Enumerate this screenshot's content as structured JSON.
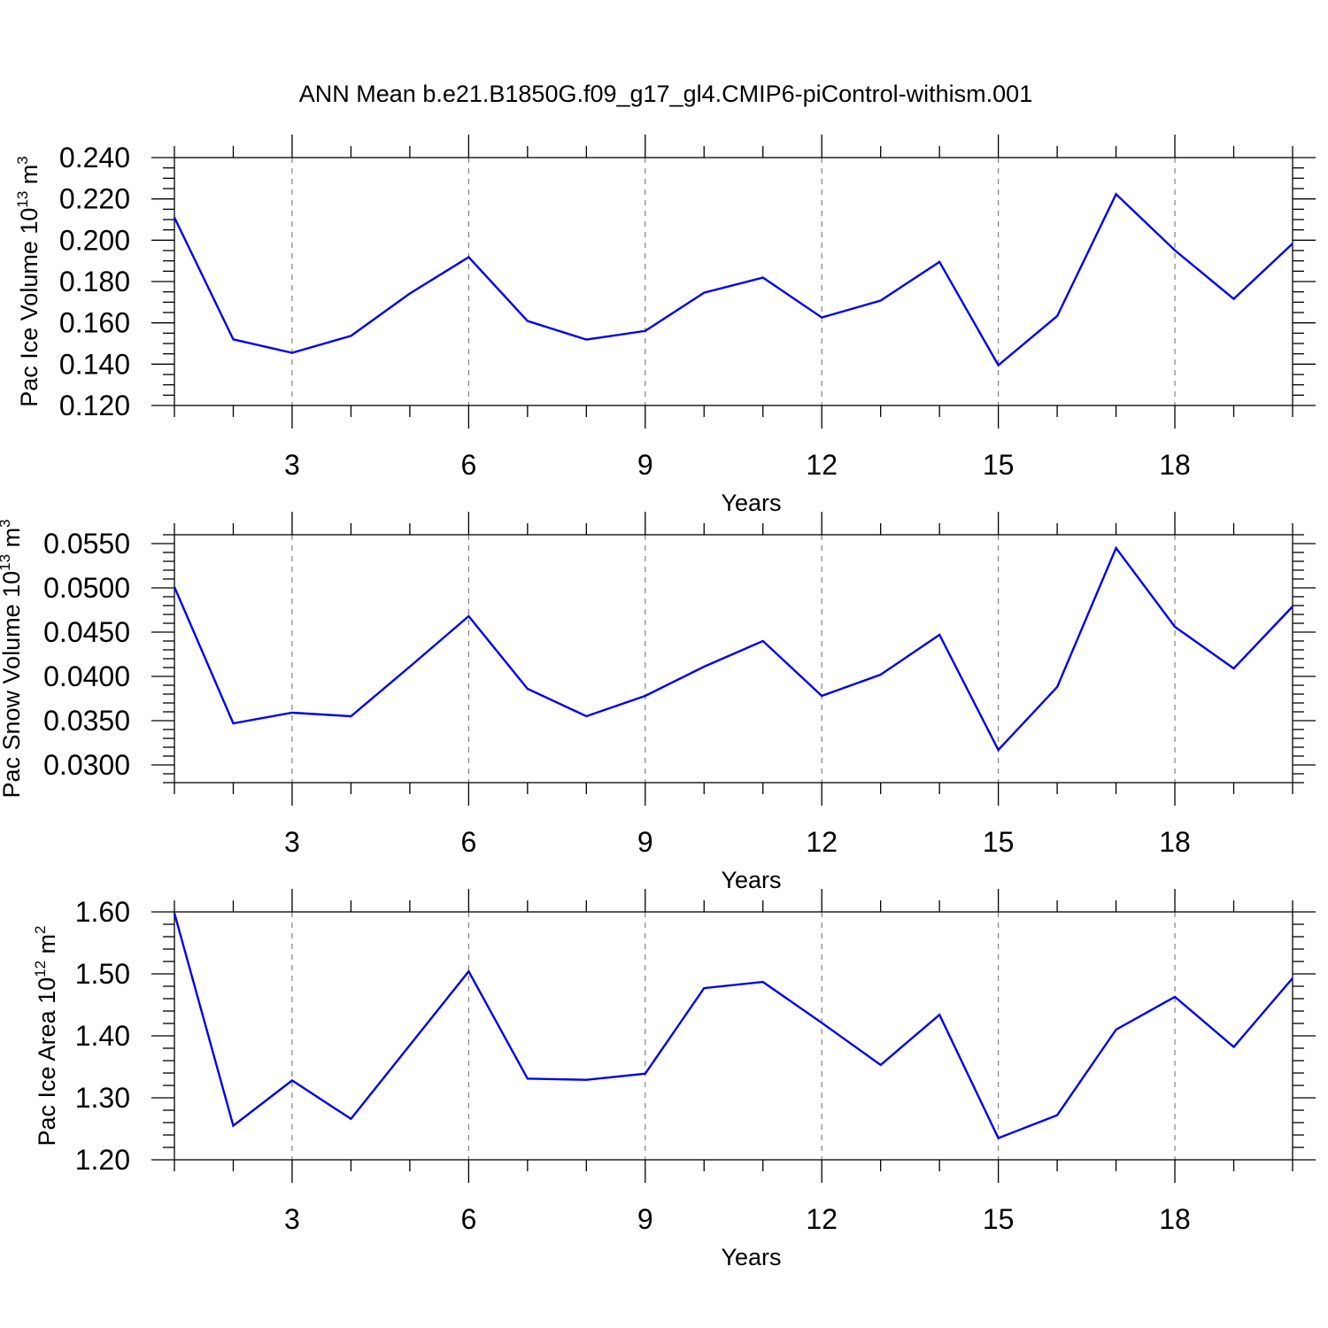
{
  "title": "ANN Mean b.e21.B1850G.f09_g17_gl4.CMIP6-piControl-withism.001",
  "colors": {
    "series": "#0000ee",
    "grid": "#777777",
    "frame": "#000000"
  },
  "chart_data": [
    {
      "type": "line",
      "ylabel": {
        "prefix": "Pac Ice Volume 10",
        "exp": "13",
        "unit": " m",
        "unit_exp": "3"
      },
      "xlabel": "Years",
      "xlim": [
        1,
        20
      ],
      "ylim": [
        0.12,
        0.24
      ],
      "x_ticks": [
        3,
        6,
        9,
        12,
        15,
        18
      ],
      "y_ticks": [
        "0.120",
        "0.140",
        "0.160",
        "0.180",
        "0.200",
        "0.220",
        "0.240"
      ],
      "y_tick_values": [
        0.12,
        0.14,
        0.16,
        0.18,
        0.2,
        0.22,
        0.24
      ],
      "y_minor_step": 0.005,
      "grid": "x dashed",
      "x": [
        1,
        2,
        3,
        4,
        5,
        6,
        7,
        8,
        9,
        10,
        11,
        12,
        13,
        14,
        15,
        16,
        17,
        18,
        19,
        20
      ],
      "series": [
        {
          "values": [
            0.211,
            0.152,
            0.1455,
            0.1537,
            0.1742,
            0.1918,
            0.1609,
            0.1519,
            0.1561,
            0.1746,
            0.1819,
            0.1626,
            0.1708,
            0.1895,
            0.1395,
            0.1633,
            0.2223,
            0.1951,
            0.1716,
            0.1984
          ]
        }
      ]
    },
    {
      "type": "line",
      "ylabel": {
        "prefix": "Pac Snow Volume 10",
        "exp": "13",
        "unit": " m",
        "unit_exp": "3"
      },
      "xlabel": "Years",
      "xlim": [
        1,
        20
      ],
      "ylim": [
        0.028,
        0.056
      ],
      "x_ticks": [
        3,
        6,
        9,
        12,
        15,
        18
      ],
      "y_ticks": [
        "0.0300",
        "0.0350",
        "0.0400",
        "0.0450",
        "0.0500",
        "0.0550"
      ],
      "y_tick_values": [
        0.03,
        0.035,
        0.04,
        0.045,
        0.05,
        0.055
      ],
      "y_minor_step": 0.001,
      "grid": "x dashed",
      "x": [
        1,
        2,
        3,
        4,
        5,
        6,
        7,
        8,
        9,
        10,
        11,
        12,
        13,
        14,
        15,
        16,
        17,
        18,
        19,
        20
      ],
      "series": [
        {
          "values": [
            0.0501,
            0.0347,
            0.0359,
            0.0355,
            0.0411,
            0.0468,
            0.0386,
            0.0355,
            0.0378,
            0.0411,
            0.044,
            0.0378,
            0.0402,
            0.0447,
            0.0317,
            0.0388,
            0.0545,
            0.0456,
            0.0409,
            0.0479
          ]
        }
      ]
    },
    {
      "type": "line",
      "ylabel": {
        "prefix": "Pac Ice Area 10",
        "exp": "12",
        "unit": " m",
        "unit_exp": "2"
      },
      "xlabel": "Years",
      "xlim": [
        1,
        20
      ],
      "ylim": [
        1.2,
        1.6
      ],
      "x_ticks": [
        3,
        6,
        9,
        12,
        15,
        18
      ],
      "y_ticks": [
        "1.20",
        "1.30",
        "1.40",
        "1.50",
        "1.60"
      ],
      "y_tick_values": [
        1.2,
        1.3,
        1.4,
        1.5,
        1.6
      ],
      "y_minor_step": 0.02,
      "grid": "x dashed",
      "x": [
        1,
        2,
        3,
        4,
        5,
        6,
        7,
        8,
        9,
        10,
        11,
        12,
        13,
        14,
        15,
        16,
        17,
        18,
        19,
        20
      ],
      "series": [
        {
          "values": [
            1.598,
            1.255,
            1.328,
            1.266,
            1.385,
            1.504,
            1.331,
            1.329,
            1.339,
            1.477,
            1.487,
            1.421,
            1.353,
            1.434,
            1.235,
            1.272,
            1.41,
            1.463,
            1.382,
            1.493
          ]
        }
      ]
    }
  ]
}
